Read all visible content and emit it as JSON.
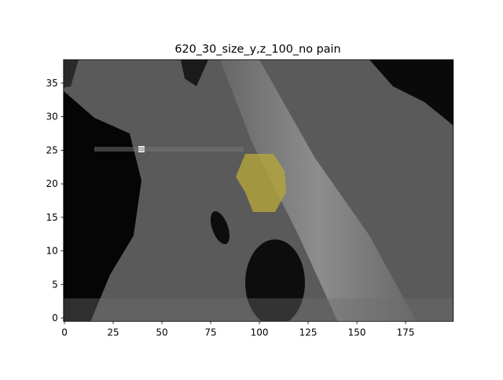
{
  "chart_data": {
    "type": "image",
    "title": "620_30_size_y,z_100_no pain",
    "xlim": [
      -0.5,
      199.5
    ],
    "ylim": [
      -0.5,
      38.5
    ],
    "xticks": [
      0,
      25,
      50,
      75,
      100,
      125,
      150,
      175
    ],
    "yticks": [
      0,
      5,
      10,
      15,
      20,
      25,
      30,
      35
    ]
  }
}
